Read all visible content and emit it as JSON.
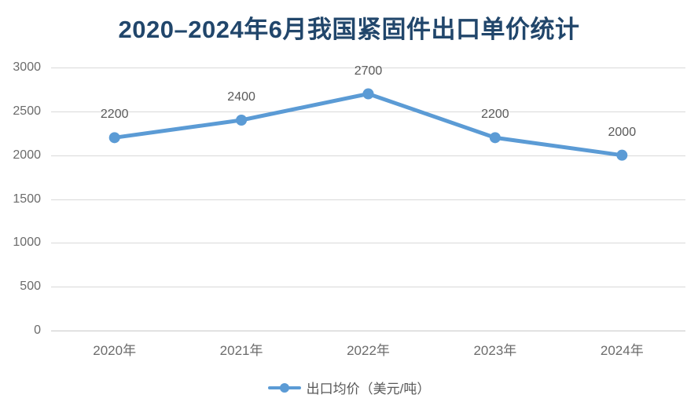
{
  "chart_data": {
    "type": "line",
    "title": "2020–2024年6月我国紧固件出口单价统计",
    "categories": [
      "2020年",
      "2021年",
      "2022年",
      "2023年",
      "2024年"
    ],
    "series": [
      {
        "name": "出口均价（美元/吨）",
        "values": [
          2200,
          2400,
          2700,
          2200,
          2000
        ]
      }
    ],
    "data_labels": [
      "2200",
      "2400",
      "2700",
      "2200",
      "2000"
    ],
    "ylabel": "",
    "xlabel": "",
    "ylim": [
      0,
      3000
    ],
    "ytick_interval": 500,
    "yticks": [
      "0",
      "500",
      "1000",
      "1500",
      "2000",
      "2500",
      "3000"
    ],
    "grid": true,
    "legend_position": "bottom",
    "colors": {
      "line": "#5B9BD5",
      "title": "#21466B",
      "axis_label": "#6B6B6B",
      "data_label": "#595959",
      "gridline": "#D9D9D9",
      "background": "#FFFFFF"
    }
  }
}
